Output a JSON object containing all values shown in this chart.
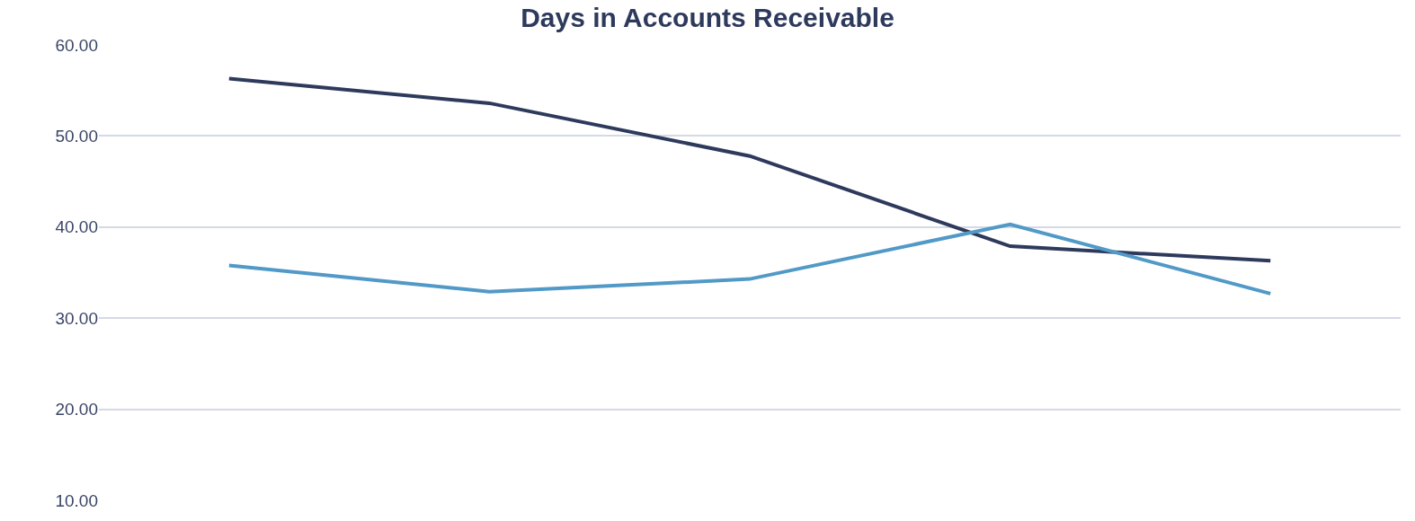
{
  "chart_data": {
    "type": "line",
    "title": "Days in Accounts Receivable",
    "categories": [
      null,
      null,
      null,
      null,
      null
    ],
    "series": [
      {
        "color": "#2e3a5c",
        "values": [
          56.3,
          53.6,
          47.8,
          37.9,
          36.3
        ]
      },
      {
        "color": "#5199c7",
        "values": [
          35.8,
          32.9,
          34.3,
          40.3,
          32.7
        ]
      }
    ],
    "ylim": [
      10,
      60
    ],
    "yticks": [
      {
        "value": 10,
        "label": "10.00"
      },
      {
        "value": 20,
        "label": "20.00"
      },
      {
        "value": 30,
        "label": "30.00"
      },
      {
        "value": 40,
        "label": "40.00"
      },
      {
        "value": 50,
        "label": "50.00"
      },
      {
        "value": 60,
        "label": "60.00"
      }
    ],
    "grid": "y",
    "tick_labels": "y",
    "marker": "none",
    "line_style": "solid"
  }
}
